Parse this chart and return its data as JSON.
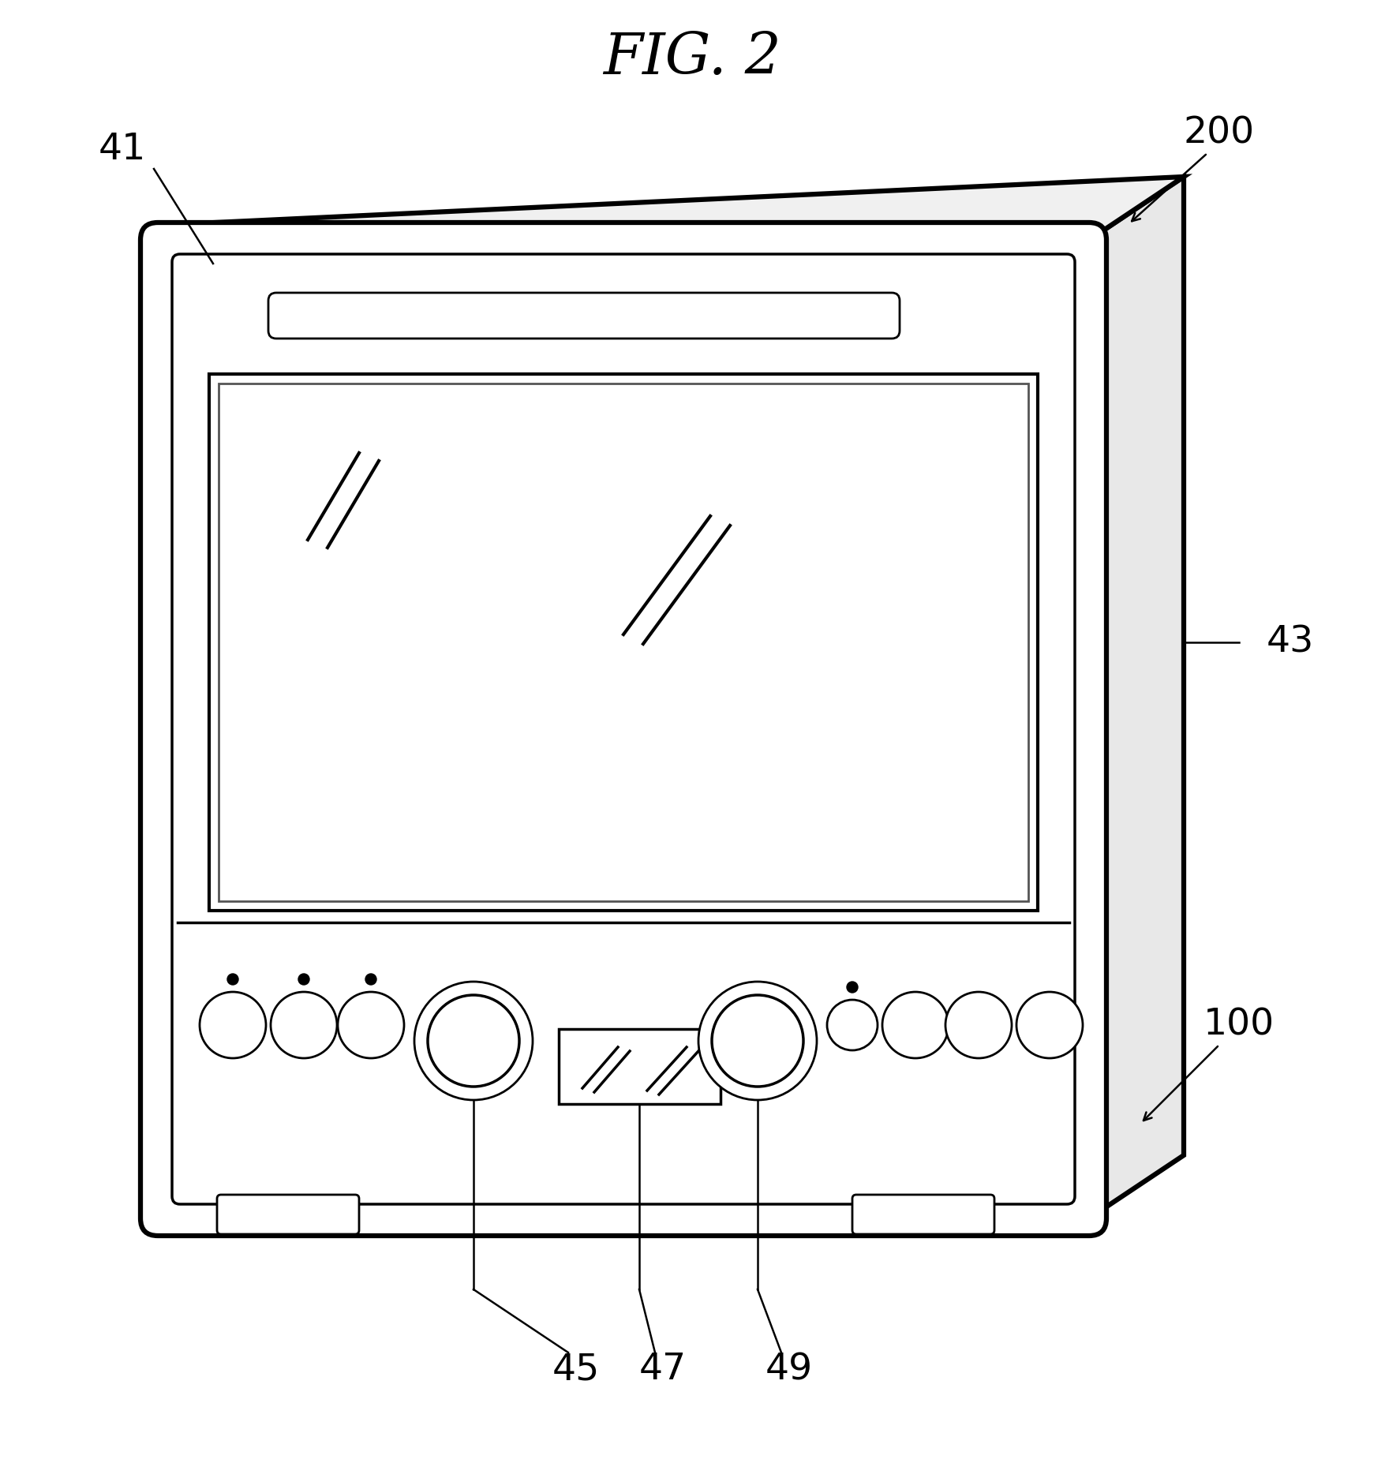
{
  "title": "FIG. 2",
  "bg_color": "#ffffff",
  "line_color": "#000000",
  "figsize": [
    17.55,
    18.54
  ],
  "dpi": 100
}
